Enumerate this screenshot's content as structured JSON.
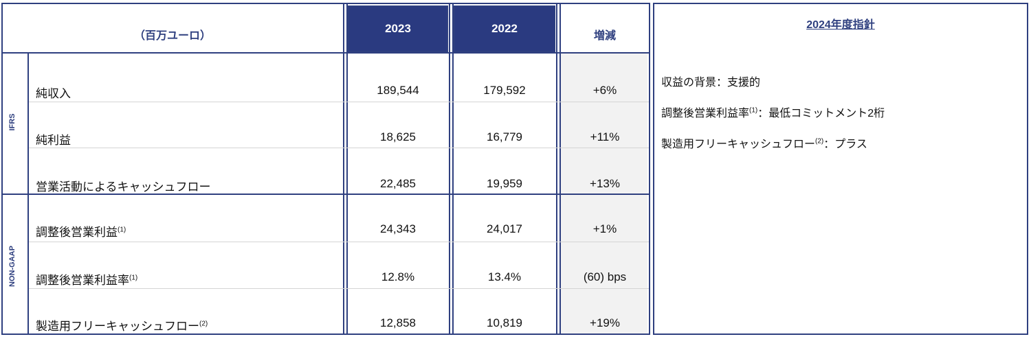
{
  "header": {
    "unit_label": "（百万ユーロ）",
    "year_2023": "2023",
    "year_2022": "2022",
    "change": "増減"
  },
  "groups": {
    "ifrs": "IFRS",
    "non_gaap": "NON-GAAP"
  },
  "rows": [
    {
      "label": "純収入",
      "note": "",
      "v2023": "189,544",
      "v2022": "179,592",
      "change": "+6%"
    },
    {
      "label": "純利益",
      "note": "",
      "v2023": "18,625",
      "v2022": "16,779",
      "change": "+11%"
    },
    {
      "label": "営業活動によるキャッシュフロー",
      "note": "",
      "v2023": "22,485",
      "v2022": "19,959",
      "change": "+13%"
    },
    {
      "label": "調整後営業利益",
      "note": "(1)",
      "v2023": "24,343",
      "v2022": "24,017",
      "change": "+1%"
    },
    {
      "label": "調整後営業利益率",
      "note": "(1)",
      "v2023": "12.8%",
      "v2022": "13.4%",
      "change": "(60) bps"
    },
    {
      "label": "製造用フリーキャッシュフロー",
      "note": "(2)",
      "v2023": "12,858",
      "v2022": "10,819",
      "change": "+19%"
    }
  ],
  "guidance": {
    "title": "2024年度指針",
    "line1": "収益の背景：支援的",
    "line2_pre": "調整後営業利益率",
    "line2_note": "(1)",
    "line2_post": "：最低コミットメント2桁",
    "line3_pre": "製造用フリーキャッシュフロー",
    "line3_note": "(2)",
    "line3_post": "：プラス"
  },
  "colors": {
    "navy": "#2e3f7f",
    "header_fill": "#2a3a80",
    "change_column_fill": "#f2f2f2"
  }
}
